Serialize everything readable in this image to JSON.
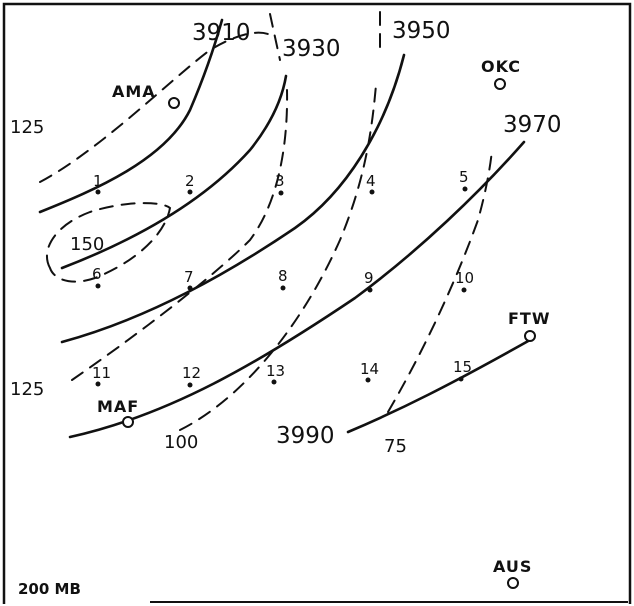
{
  "map": {
    "level_label": "200 MB",
    "frame_color": "#111111",
    "height_contours": [
      {
        "label": "3910"
      },
      {
        "label": "3930"
      },
      {
        "label": "3950"
      },
      {
        "label": "3970"
      },
      {
        "label": "3990"
      }
    ],
    "isotachs": [
      {
        "label": "125"
      },
      {
        "label": "150"
      },
      {
        "label": "125"
      },
      {
        "label": "100"
      },
      {
        "label": "75"
      }
    ],
    "stations": [
      {
        "id": "AMA"
      },
      {
        "id": "OKC"
      },
      {
        "id": "FTW"
      },
      {
        "id": "MAF"
      },
      {
        "id": "AUS"
      }
    ],
    "grid_points": [
      "1",
      "2",
      "3",
      "4",
      "5",
      "6",
      "7",
      "8",
      "9",
      "10",
      "11",
      "12",
      "13",
      "14",
      "15"
    ]
  }
}
